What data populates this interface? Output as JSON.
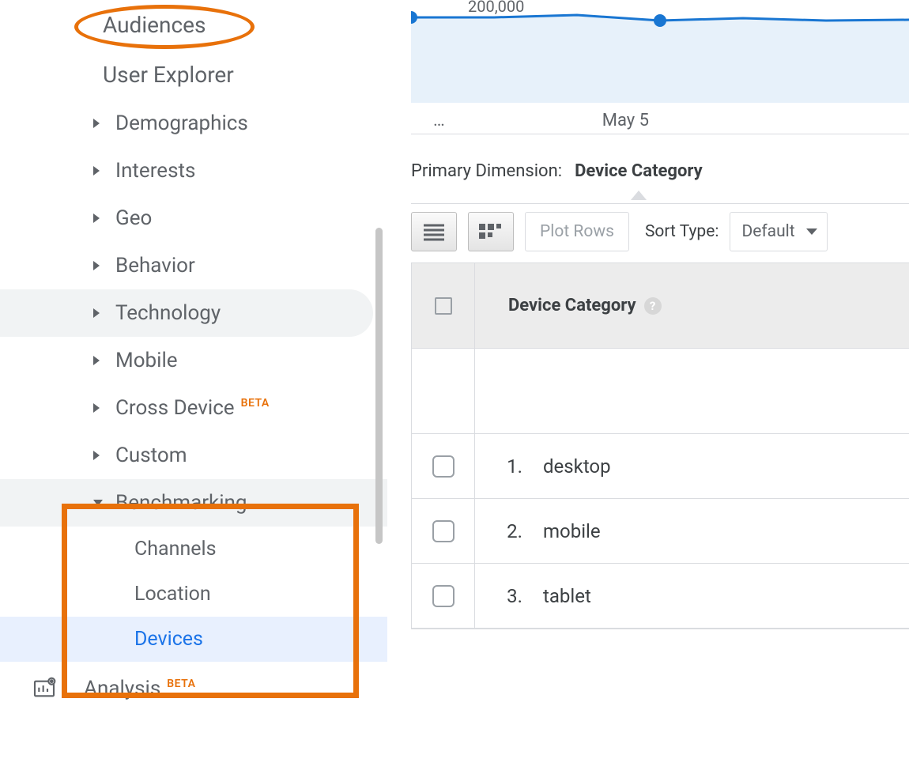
{
  "sidebar": {
    "items": [
      {
        "label": "Audiences",
        "type": "top"
      },
      {
        "label": "User Explorer",
        "type": "top"
      },
      {
        "label": "Demographics"
      },
      {
        "label": "Interests"
      },
      {
        "label": "Geo"
      },
      {
        "label": "Behavior"
      },
      {
        "label": "Technology",
        "hover": true
      },
      {
        "label": "Mobile"
      },
      {
        "label": "Cross Device",
        "beta": "BETA"
      },
      {
        "label": "Custom"
      },
      {
        "label": "Benchmarking",
        "expanded": true
      }
    ],
    "benchmarking_subs": [
      {
        "label": "Channels"
      },
      {
        "label": "Location"
      },
      {
        "label": "Devices",
        "active": true
      }
    ],
    "analysis": {
      "label": "Analysis",
      "beta": "BETA"
    }
  },
  "annotations": {
    "ellipse_color": "#e8710a",
    "rect_color": "#e8710a"
  },
  "chart": {
    "type": "line",
    "y_label": "200,000",
    "x_left": "…",
    "x_mid": "May 5",
    "line_color": "#1976d2",
    "fill_color": "#e7f1fa",
    "marker_color": "#1976d2",
    "points_y": [
      22,
      22,
      19,
      26,
      23,
      26,
      25
    ],
    "ylim": [
      0,
      100
    ]
  },
  "primary_dimension": {
    "label": "Primary Dimension:",
    "value": "Device Category"
  },
  "toolbar": {
    "plot_rows": "Plot Rows",
    "sort_label": "Sort Type:",
    "sort_value": "Default"
  },
  "table": {
    "header": "Device Category",
    "rows": [
      {
        "n": "1.",
        "v": "desktop"
      },
      {
        "n": "2.",
        "v": "mobile"
      },
      {
        "n": "3.",
        "v": "tablet"
      }
    ]
  }
}
